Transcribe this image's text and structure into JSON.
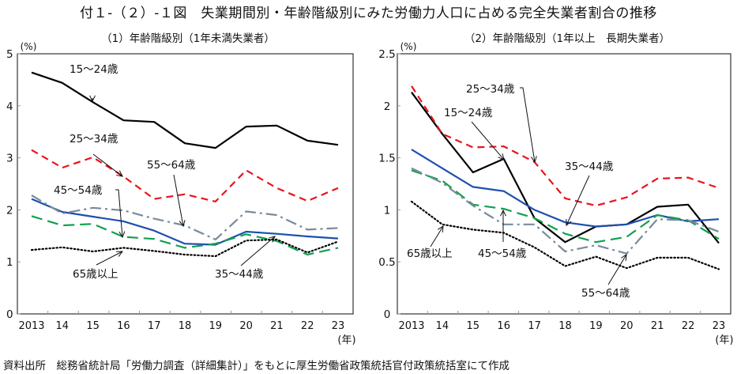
{
  "title": "付１-（２）-１図　失業期間別・年齢階級別にみた労働力人口に占める完全失業者割合の推移",
  "source": "資料出所　総務省統計局「労働力調査（詳細集計）」をもとに厚生労働省政策統括官付政策統括室にて作成",
  "colors": {
    "age_15_24": "#000000",
    "age_25_34": "#e8141e",
    "age_35_44": "#1e4fb0",
    "age_45_54": "#12a050",
    "age_55_64": "#7a8a9a",
    "age_65_over": "#000000"
  },
  "chart_data": [
    {
      "type": "line",
      "title": "（1）年齢階級別（1年未満失業者）",
      "ylabel": "(%)",
      "xlabel": "(年)",
      "ylim": [
        0,
        5
      ],
      "yticks": [
        "0",
        "1",
        "2",
        "3",
        "4",
        "5"
      ],
      "categories": [
        "2013",
        "14",
        "15",
        "16",
        "17",
        "18",
        "19",
        "20",
        "21",
        "22",
        "23"
      ],
      "grid": false,
      "series": [
        {
          "name": "15～24歳",
          "key": "age_15_24",
          "style": "solid",
          "values": [
            4.64,
            4.44,
            4.07,
            3.72,
            3.69,
            3.28,
            3.19,
            3.6,
            3.62,
            3.33,
            3.25
          ]
        },
        {
          "name": "25～34歳",
          "key": "age_25_34",
          "style": "dash",
          "values": [
            3.15,
            2.81,
            3.01,
            2.64,
            2.21,
            2.3,
            2.16,
            2.76,
            2.42,
            2.17,
            2.42
          ]
        },
        {
          "name": "35～44歳",
          "key": "age_35_44",
          "style": "solid",
          "values": [
            2.21,
            1.96,
            1.87,
            1.78,
            1.6,
            1.35,
            1.33,
            1.58,
            1.54,
            1.49,
            1.45
          ]
        },
        {
          "name": "45～54歳",
          "key": "age_45_54",
          "style": "longdash",
          "values": [
            1.88,
            1.7,
            1.73,
            1.48,
            1.44,
            1.27,
            1.35,
            1.53,
            1.4,
            1.14,
            1.27
          ]
        },
        {
          "name": "55～64歳",
          "key": "age_55_64",
          "style": "dashdot",
          "values": [
            2.28,
            1.93,
            2.04,
            1.99,
            1.83,
            1.7,
            1.43,
            1.97,
            1.9,
            1.62,
            1.65
          ]
        },
        {
          "name": "65歳以上",
          "key": "age_65_over",
          "style": "dot",
          "values": [
            1.23,
            1.28,
            1.2,
            1.27,
            1.21,
            1.14,
            1.11,
            1.41,
            1.43,
            1.18,
            1.39
          ]
        }
      ],
      "annotations": [
        {
          "text": "15～24歳",
          "series": "age_15_24"
        },
        {
          "text": "25～34歳",
          "series": "age_25_34"
        },
        {
          "text": "55～64歳",
          "series": "age_55_64"
        },
        {
          "text": "45～54歳",
          "series": "age_45_54"
        },
        {
          "text": "65歳以上",
          "series": "age_65_over"
        },
        {
          "text": "35～44歳",
          "series": "age_35_44"
        }
      ]
    },
    {
      "type": "line",
      "title": "（2）年齢階級別（1年以上　長期失業者）",
      "ylabel": "(%)",
      "xlabel": "(年)",
      "ylim": [
        0,
        2.5
      ],
      "yticks": [
        "0",
        "0.5",
        "1",
        "1.5",
        "2",
        "2.5"
      ],
      "categories": [
        "2013",
        "14",
        "15",
        "16",
        "17",
        "18",
        "19",
        "20",
        "21",
        "22",
        "23"
      ],
      "grid": false,
      "series": [
        {
          "name": "15～24歳",
          "key": "age_15_24",
          "style": "solid",
          "values": [
            2.13,
            1.73,
            1.36,
            1.49,
            0.92,
            0.69,
            0.84,
            0.86,
            1.03,
            1.05,
            0.68
          ]
        },
        {
          "name": "25～34歳",
          "key": "age_25_34",
          "style": "dash",
          "values": [
            2.19,
            1.73,
            1.6,
            1.61,
            1.46,
            1.11,
            1.04,
            1.12,
            1.3,
            1.31,
            1.21
          ]
        },
        {
          "name": "35～44歳",
          "key": "age_35_44",
          "style": "solid",
          "values": [
            1.58,
            1.4,
            1.22,
            1.18,
            1.0,
            0.88,
            0.84,
            0.86,
            0.95,
            0.89,
            0.91
          ]
        },
        {
          "name": "45～54歳",
          "key": "age_45_54",
          "style": "longdash",
          "values": [
            1.38,
            1.28,
            1.05,
            1.01,
            0.92,
            0.77,
            0.69,
            0.74,
            0.95,
            0.9,
            0.72
          ]
        },
        {
          "name": "55～64歳",
          "key": "age_55_64",
          "style": "dashdot",
          "values": [
            1.4,
            1.26,
            1.04,
            0.86,
            0.86,
            0.6,
            0.66,
            0.58,
            0.91,
            0.9,
            0.79
          ]
        },
        {
          "name": "65歳以上",
          "key": "age_65_over",
          "style": "dot",
          "values": [
            1.08,
            0.86,
            0.81,
            0.78,
            0.64,
            0.46,
            0.55,
            0.44,
            0.54,
            0.54,
            0.43
          ]
        }
      ],
      "annotations": [
        {
          "text": "25～34歳",
          "series": "age_25_34"
        },
        {
          "text": "15～24歳",
          "series": "age_15_24"
        },
        {
          "text": "35～44歳",
          "series": "age_35_44"
        },
        {
          "text": "65歳以上",
          "series": "age_65_over"
        },
        {
          "text": "45～54歳",
          "series": "age_45_54"
        },
        {
          "text": "55～64歳",
          "series": "age_55_64"
        }
      ]
    }
  ]
}
